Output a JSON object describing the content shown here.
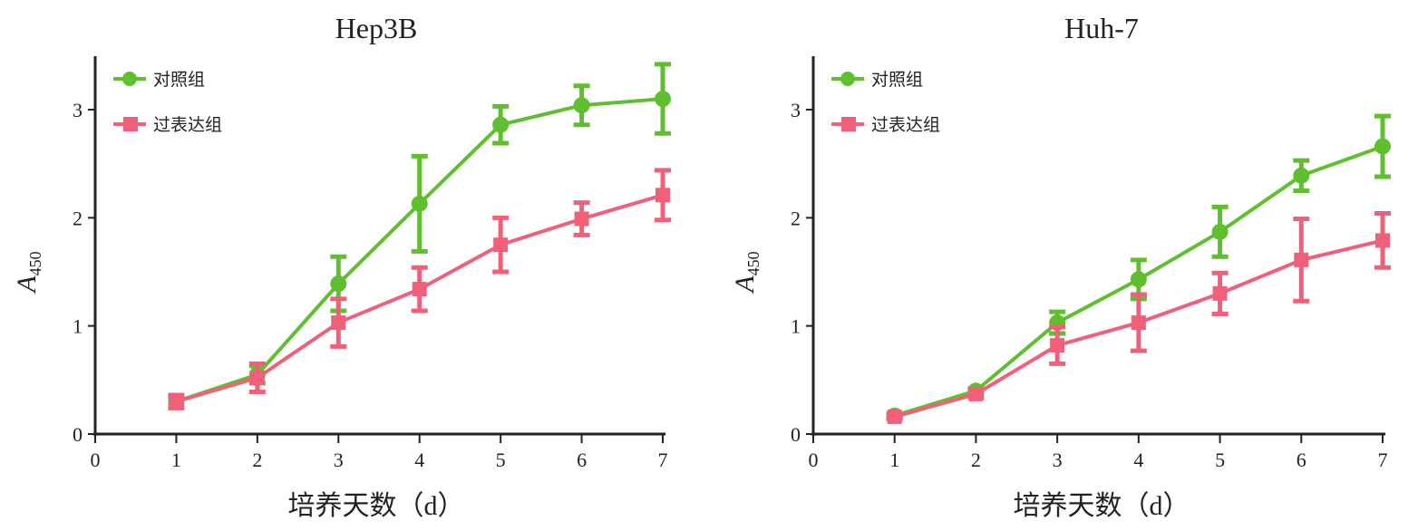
{
  "chart_data": [
    {
      "type": "line",
      "title": "Hep3B",
      "xlabel": "培养天数（d）",
      "ylabel": "A",
      "ylabel_sub": "450",
      "xlim": [
        0,
        7
      ],
      "ylim": [
        0,
        3.5
      ],
      "xticks": [
        "0",
        "1",
        "2",
        "3",
        "4",
        "5",
        "6",
        "7"
      ],
      "yticks": [
        "0",
        "1",
        "2",
        "3"
      ],
      "legend_position": "top-left",
      "x": [
        1,
        2,
        3,
        4,
        5,
        6,
        7
      ],
      "series": [
        {
          "name": "对照组",
          "marker": "circle",
          "color": "#5fbf2e",
          "values": [
            0.3,
            0.55,
            1.39,
            2.13,
            2.86,
            3.04,
            3.1
          ],
          "errors": [
            0.04,
            0.08,
            0.25,
            0.44,
            0.17,
            0.18,
            0.32
          ]
        },
        {
          "name": "过表达组",
          "marker": "square",
          "color": "#f0607a",
          "values": [
            0.3,
            0.52,
            1.03,
            1.34,
            1.75,
            1.99,
            2.21
          ],
          "errors": [
            0.06,
            0.13,
            0.22,
            0.2,
            0.25,
            0.15,
            0.23
          ]
        }
      ]
    },
    {
      "type": "line",
      "title": "Huh-7",
      "xlabel": "培养天数（d）",
      "ylabel": "A",
      "ylabel_sub": "450",
      "xlim": [
        0,
        7
      ],
      "ylim": [
        0,
        3.5
      ],
      "xticks": [
        "0",
        "1",
        "2",
        "3",
        "4",
        "5",
        "6",
        "7"
      ],
      "yticks": [
        "0",
        "1",
        "2",
        "3"
      ],
      "legend_position": "top-left",
      "x": [
        1,
        2,
        3,
        4,
        5,
        6,
        7
      ],
      "series": [
        {
          "name": "对照组",
          "marker": "circle",
          "color": "#5fbf2e",
          "values": [
            0.17,
            0.4,
            1.03,
            1.43,
            1.87,
            2.39,
            2.66
          ],
          "errors": [
            0.02,
            0.02,
            0.1,
            0.18,
            0.23,
            0.14,
            0.28
          ]
        },
        {
          "name": "过表达组",
          "marker": "square",
          "color": "#f0607a",
          "values": [
            0.16,
            0.37,
            0.82,
            1.03,
            1.3,
            1.61,
            1.79
          ],
          "errors": [
            0.02,
            0.03,
            0.17,
            0.26,
            0.19,
            0.38,
            0.25
          ]
        }
      ]
    }
  ]
}
